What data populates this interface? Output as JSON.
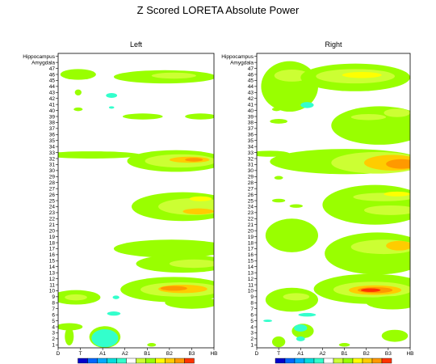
{
  "chart_data": {
    "type": "heatmap",
    "title": "Z Scored LORETA Absolute Power",
    "y_labels": [
      "1",
      "2",
      "3",
      "4",
      "5",
      "6",
      "7",
      "8",
      "9",
      "10",
      "11",
      "12",
      "13",
      "14",
      "15",
      "16",
      "17",
      "18",
      "19",
      "20",
      "21",
      "22",
      "23",
      "24",
      "25",
      "26",
      "27",
      "28",
      "29",
      "30",
      "31",
      "32",
      "33",
      "34",
      "35",
      "36",
      "37",
      "38",
      "39",
      "40",
      "41",
      "42",
      "43",
      "44",
      "45",
      "46",
      "47",
      "Amygdala",
      "Hippocampus"
    ],
    "x_tick_labels": [
      "D",
      "T",
      "A1",
      "A2",
      "B1",
      "B2",
      "B3",
      "HB"
    ],
    "x_range": [
      0,
      7
    ],
    "colorbar": [
      "#0000cc",
      "#0066ff",
      "#00aaff",
      "#00dddd",
      "#33ffcc",
      "#ffffff",
      "#ccff33",
      "#99ff00",
      "#ffff00",
      "#ffcc00",
      "#ff9900",
      "#ff3300"
    ],
    "panels": [
      {
        "name": "Left",
        "blobs": [
          {
            "x": 0.9,
            "y": 46,
            "rx": 0.8,
            "ry": 0.9,
            "c": "#99ff00"
          },
          {
            "x": 4.8,
            "y": 45.6,
            "rx": 2.3,
            "ry": 1.1,
            "c": "#99ff00"
          },
          {
            "x": 5.2,
            "y": 45.8,
            "rx": 1.0,
            "ry": 0.5,
            "c": "#ccff33"
          },
          {
            "x": 0.9,
            "y": 43,
            "rx": 0.15,
            "ry": 0.5,
            "c": "#99ff00"
          },
          {
            "x": 2.4,
            "y": 42.5,
            "rx": 0.25,
            "ry": 0.4,
            "c": "#33ffcc"
          },
          {
            "x": 2.4,
            "y": 40.5,
            "rx": 0.12,
            "ry": 0.2,
            "c": "#33ffcc"
          },
          {
            "x": 0.9,
            "y": 40.2,
            "rx": 0.2,
            "ry": 0.3,
            "c": "#99ff00"
          },
          {
            "x": 3.8,
            "y": 39,
            "rx": 0.9,
            "ry": 0.5,
            "c": "#99ff00"
          },
          {
            "x": 6.4,
            "y": 39,
            "rx": 0.7,
            "ry": 0.5,
            "c": "#99ff00"
          },
          {
            "x": 1.5,
            "y": 32.6,
            "rx": 2.2,
            "ry": 0.6,
            "c": "#99ff00"
          },
          {
            "x": 5.3,
            "y": 31.6,
            "rx": 2.2,
            "ry": 1.8,
            "c": "#99ff00"
          },
          {
            "x": 5.5,
            "y": 31.6,
            "rx": 1.6,
            "ry": 1.1,
            "c": "#ccff33"
          },
          {
            "x": 5.9,
            "y": 31.8,
            "rx": 0.9,
            "ry": 0.5,
            "c": "#ffcc00"
          },
          {
            "x": 6.1,
            "y": 31.8,
            "rx": 0.4,
            "ry": 0.3,
            "c": "#ff9900"
          },
          {
            "x": 5.6,
            "y": 24,
            "rx": 2.3,
            "ry": 2.4,
            "c": "#99ff00"
          },
          {
            "x": 6.1,
            "y": 24,
            "rx": 1.6,
            "ry": 1.4,
            "c": "#ccff33"
          },
          {
            "x": 6.3,
            "y": 23.2,
            "rx": 0.7,
            "ry": 0.5,
            "c": "#ffcc00"
          },
          {
            "x": 6.4,
            "y": 25.3,
            "rx": 0.5,
            "ry": 0.4,
            "c": "#ffff00"
          },
          {
            "x": 5.1,
            "y": 17,
            "rx": 2.6,
            "ry": 1.5,
            "c": "#99ff00"
          },
          {
            "x": 5.6,
            "y": 14.5,
            "rx": 2.1,
            "ry": 1.5,
            "c": "#99ff00"
          },
          {
            "x": 6.1,
            "y": 14.5,
            "rx": 1.1,
            "ry": 0.7,
            "c": "#ccff33"
          },
          {
            "x": 5.2,
            "y": 10.2,
            "rx": 2.4,
            "ry": 2.1,
            "c": "#99ff00"
          },
          {
            "x": 5.5,
            "y": 10.2,
            "rx": 1.8,
            "ry": 1.2,
            "c": "#ccff33"
          },
          {
            "x": 5.6,
            "y": 10.3,
            "rx": 1.1,
            "ry": 0.7,
            "c": "#ffcc00"
          },
          {
            "x": 5.2,
            "y": 10.4,
            "rx": 0.6,
            "ry": 0.4,
            "c": "#ff9900"
          },
          {
            "x": 0.8,
            "y": 8.9,
            "rx": 1.1,
            "ry": 1.2,
            "c": "#99ff00"
          },
          {
            "x": 0.8,
            "y": 8.9,
            "rx": 0.5,
            "ry": 0.5,
            "c": "#ccff33"
          },
          {
            "x": 6.0,
            "y": 8,
            "rx": 1.2,
            "ry": 1.0,
            "c": "#99ff00"
          },
          {
            "x": 2.6,
            "y": 8.9,
            "rx": 0.15,
            "ry": 0.3,
            "c": "#33ffcc"
          },
          {
            "x": 2.5,
            "y": 6.2,
            "rx": 0.3,
            "ry": 0.35,
            "c": "#33ffcc"
          },
          {
            "x": 0.5,
            "y": 4,
            "rx": 0.6,
            "ry": 0.6,
            "c": "#99ff00"
          },
          {
            "x": 0.5,
            "y": 2.4,
            "rx": 0.2,
            "ry": 1.5,
            "c": "#99ff00"
          },
          {
            "x": 2.1,
            "y": 2.3,
            "rx": 0.7,
            "ry": 1.8,
            "c": "#99ff00"
          },
          {
            "x": 2.1,
            "y": 2.1,
            "rx": 0.6,
            "ry": 1.5,
            "c": "#33ffcc"
          },
          {
            "x": 4.2,
            "y": 1.0,
            "rx": 0.2,
            "ry": 0.3,
            "c": "#99ff00"
          }
        ]
      },
      {
        "name": "Right",
        "blobs": [
          {
            "x": 1.5,
            "y": 44,
            "rx": 1.3,
            "ry": 4.2,
            "c": "#99ff00"
          },
          {
            "x": 1.6,
            "y": 45.8,
            "rx": 0.8,
            "ry": 1.0,
            "c": "#ccff33"
          },
          {
            "x": 4.5,
            "y": 45.5,
            "rx": 2.5,
            "ry": 2.3,
            "c": "#99ff00"
          },
          {
            "x": 4.5,
            "y": 45.7,
            "rx": 1.8,
            "ry": 1.2,
            "c": "#ccff33"
          },
          {
            "x": 4.8,
            "y": 45.9,
            "rx": 0.9,
            "ry": 0.5,
            "c": "#ffff00"
          },
          {
            "x": 2.3,
            "y": 40.9,
            "rx": 0.3,
            "ry": 0.5,
            "c": "#33ffcc"
          },
          {
            "x": 5.6,
            "y": 37.5,
            "rx": 2.2,
            "ry": 3.2,
            "c": "#99ff00"
          },
          {
            "x": 5.1,
            "y": 38.9,
            "rx": 0.8,
            "ry": 0.5,
            "c": "#ccff33"
          },
          {
            "x": 6.4,
            "y": 39.6,
            "rx": 0.6,
            "ry": 0.7,
            "c": "#ccff33"
          },
          {
            "x": 0.9,
            "y": 40.2,
            "rx": 0.2,
            "ry": 0.3,
            "c": "#99ff00"
          },
          {
            "x": 1.0,
            "y": 38.2,
            "rx": 0.4,
            "ry": 0.4,
            "c": "#99ff00"
          },
          {
            "x": 4.1,
            "y": 31.5,
            "rx": 3.5,
            "ry": 2.1,
            "c": "#99ff00"
          },
          {
            "x": 5.5,
            "y": 31.3,
            "rx": 2.1,
            "ry": 1.8,
            "c": "#ccff33"
          },
          {
            "x": 6.2,
            "y": 31.3,
            "rx": 1.3,
            "ry": 1.3,
            "c": "#ffcc00"
          },
          {
            "x": 6.6,
            "y": 31.1,
            "rx": 0.7,
            "ry": 0.8,
            "c": "#ff9900"
          },
          {
            "x": 0.6,
            "y": 32.8,
            "rx": 0.9,
            "ry": 0.5,
            "c": "#99ff00"
          },
          {
            "x": 1.0,
            "y": 28.8,
            "rx": 0.2,
            "ry": 0.3,
            "c": "#99ff00"
          },
          {
            "x": 1.0,
            "y": 25.0,
            "rx": 0.3,
            "ry": 0.3,
            "c": "#99ff00"
          },
          {
            "x": 1.8,
            "y": 24.1,
            "rx": 0.3,
            "ry": 0.3,
            "c": "#99ff00"
          },
          {
            "x": 5.4,
            "y": 24.3,
            "rx": 2.4,
            "ry": 3.3,
            "c": "#99ff00"
          },
          {
            "x": 5.8,
            "y": 25.6,
            "rx": 1.4,
            "ry": 0.7,
            "c": "#ccff33"
          },
          {
            "x": 6.1,
            "y": 23.4,
            "rx": 1.2,
            "ry": 0.8,
            "c": "#ccff33"
          },
          {
            "x": 6.4,
            "y": 26.1,
            "rx": 0.6,
            "ry": 0.4,
            "c": "#ffff00"
          },
          {
            "x": 1.6,
            "y": 19.2,
            "rx": 1.2,
            "ry": 2.8,
            "c": "#99ff00"
          },
          {
            "x": 5.5,
            "y": 16.2,
            "rx": 2.4,
            "ry": 3.5,
            "c": "#99ff00"
          },
          {
            "x": 5.8,
            "y": 17.3,
            "rx": 1.5,
            "ry": 1.2,
            "c": "#ccff33"
          },
          {
            "x": 6.5,
            "y": 17.5,
            "rx": 0.6,
            "ry": 0.8,
            "c": "#ffcc00"
          },
          {
            "x": 5.2,
            "y": 10.3,
            "rx": 2.6,
            "ry": 2.5,
            "c": "#99ff00"
          },
          {
            "x": 5.3,
            "y": 10.2,
            "rx": 1.8,
            "ry": 1.3,
            "c": "#ccff33"
          },
          {
            "x": 5.4,
            "y": 10.1,
            "rx": 1.2,
            "ry": 0.8,
            "c": "#ffcc00"
          },
          {
            "x": 5.4,
            "y": 10.1,
            "rx": 0.8,
            "ry": 0.5,
            "c": "#ff9900"
          },
          {
            "x": 5.2,
            "y": 10.1,
            "rx": 0.45,
            "ry": 0.3,
            "c": "#ff3300"
          },
          {
            "x": 1.6,
            "y": 8.5,
            "rx": 1.2,
            "ry": 2.0,
            "c": "#99ff00"
          },
          {
            "x": 1.8,
            "y": 9.0,
            "rx": 0.6,
            "ry": 0.6,
            "c": "#ccff33"
          },
          {
            "x": 6.2,
            "y": 8.0,
            "rx": 1.2,
            "ry": 1.1,
            "c": "#99ff00"
          },
          {
            "x": 2.3,
            "y": 6.0,
            "rx": 0.4,
            "ry": 0.3,
            "c": "#33ffcc"
          },
          {
            "x": 0.5,
            "y": 5.0,
            "rx": 0.2,
            "ry": 0.2,
            "c": "#33ffcc"
          },
          {
            "x": 2.1,
            "y": 3.3,
            "rx": 0.5,
            "ry": 1.2,
            "c": "#99ff00"
          },
          {
            "x": 2.0,
            "y": 3.8,
            "rx": 0.3,
            "ry": 0.6,
            "c": "#33ffcc"
          },
          {
            "x": 2.0,
            "y": 2.0,
            "rx": 0.2,
            "ry": 0.4,
            "c": "#33ffcc"
          },
          {
            "x": 1.0,
            "y": 1.5,
            "rx": 0.3,
            "ry": 0.9,
            "c": "#99ff00"
          },
          {
            "x": 6.3,
            "y": 2.5,
            "rx": 0.6,
            "ry": 1.0,
            "c": "#99ff00"
          },
          {
            "x": 4.0,
            "y": 1.0,
            "rx": 0.25,
            "ry": 0.3,
            "c": "#99ff00"
          }
        ]
      }
    ]
  }
}
